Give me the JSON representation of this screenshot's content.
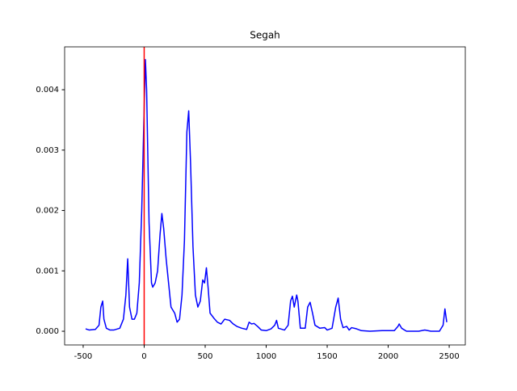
{
  "chart_data": {
    "type": "line",
    "title": "Segah",
    "x": [
      -480,
      -450,
      -400,
      -370,
      -355,
      -340,
      -330,
      -310,
      -280,
      -250,
      -200,
      -170,
      -150,
      -135,
      -120,
      -100,
      -80,
      -60,
      -40,
      -20,
      0,
      10,
      20,
      40,
      60,
      70,
      90,
      110,
      130,
      145,
      160,
      180,
      200,
      220,
      250,
      270,
      290,
      310,
      330,
      350,
      365,
      380,
      400,
      420,
      440,
      460,
      480,
      495,
      510,
      525,
      540,
      570,
      600,
      630,
      660,
      700,
      730,
      760,
      800,
      840,
      860,
      880,
      900,
      930,
      960,
      1000,
      1040,
      1070,
      1085,
      1100,
      1150,
      1180,
      1200,
      1215,
      1230,
      1250,
      1260,
      1280,
      1320,
      1340,
      1360,
      1380,
      1400,
      1440,
      1480,
      1500,
      1540,
      1570,
      1590,
      1610,
      1630,
      1660,
      1680,
      1700,
      1740,
      1780,
      1850,
      1950,
      2050,
      2080,
      2090,
      2110,
      2150,
      2250,
      2300,
      2350,
      2420,
      2450,
      2465,
      2480
    ],
    "values": [
      4e-05,
      2e-05,
      3e-05,
      0.0001,
      0.0004,
      0.0005,
      0.0002,
      5e-05,
      2e-05,
      2e-05,
      5e-05,
      0.0002,
      0.0006,
      0.0012,
      0.0004,
      0.0002,
      0.0002,
      0.0003,
      0.0008,
      0.002,
      0.0037,
      0.0045,
      0.004,
      0.0018,
      0.0008,
      0.00073,
      0.0008,
      0.001,
      0.0016,
      0.00195,
      0.0017,
      0.0012,
      0.0008,
      0.0004,
      0.0003,
      0.00015,
      0.0002,
      0.0006,
      0.0015,
      0.0033,
      0.00365,
      0.0028,
      0.0014,
      0.0006,
      0.0004,
      0.0005,
      0.00085,
      0.0008,
      0.00105,
      0.0007,
      0.0003,
      0.00022,
      0.00015,
      0.00012,
      0.0002,
      0.00018,
      0.00012,
      8e-05,
      5e-05,
      3e-05,
      0.00015,
      0.00012,
      0.00013,
      8e-05,
      2e-05,
      1e-05,
      4e-05,
      0.0001,
      0.00018,
      5e-05,
      2e-05,
      0.0001,
      0.0005,
      0.00058,
      0.0004,
      0.0006,
      0.0005,
      5e-05,
      5e-05,
      0.0004,
      0.00048,
      0.0003,
      0.0001,
      5e-05,
      6e-05,
      2e-05,
      5e-05,
      0.0004,
      0.00055,
      0.0002,
      6e-05,
      8e-05,
      2e-05,
      6e-05,
      4e-05,
      1e-05,
      0,
      1e-05,
      1e-05,
      8e-05,
      0.00012,
      5e-05,
      0,
      0,
      2e-05,
      0,
      0,
      0.0001,
      0.00037,
      0.00015
    ],
    "color": "#0000ff",
    "vline": {
      "x": 0,
      "color": "#ff0000"
    },
    "xlim": [
      -652,
      2632
    ],
    "xticks": [
      -500,
      0,
      500,
      1000,
      1500,
      2000,
      2500
    ],
    "ylim": [
      -0.000227,
      0.00471
    ],
    "yticks": [
      {
        "value": 0,
        "label": "0.000"
      },
      0.001,
      0.002,
      0.003,
      0.004
    ]
  }
}
